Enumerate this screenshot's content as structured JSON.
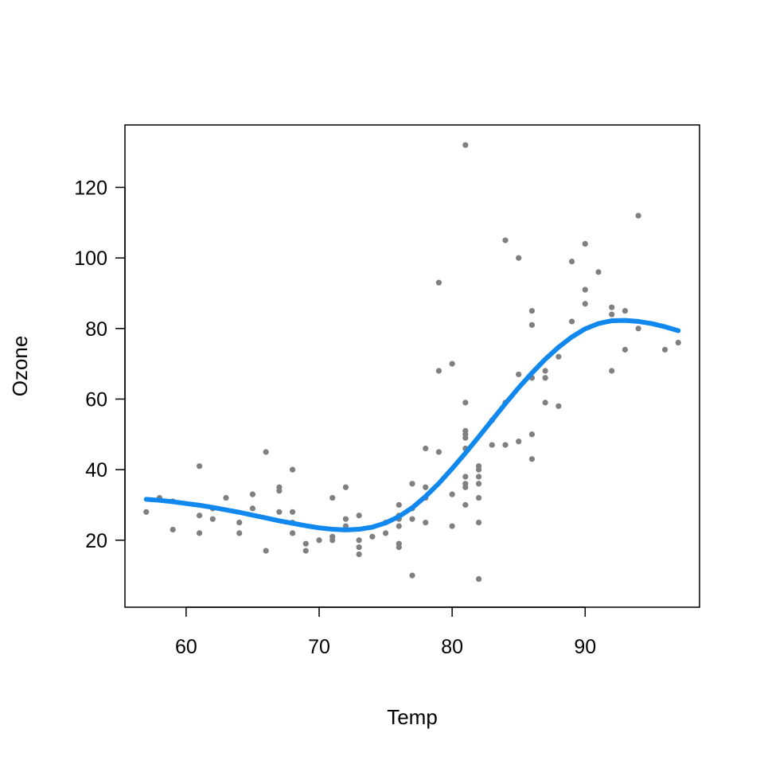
{
  "chart_data": {
    "type": "scatter",
    "xlabel": "Temp",
    "ylabel": "Ozone",
    "xlim": [
      55.4,
      98.6
    ],
    "ylim": [
      1.0,
      137.7
    ],
    "xticks": [
      60,
      70,
      80,
      90
    ],
    "yticks": [
      20,
      40,
      60,
      80,
      100,
      120
    ],
    "grid": false,
    "point_color": "#808080",
    "curve_color": "#1188ee",
    "points": [
      [
        57,
        28
      ],
      [
        58,
        32
      ],
      [
        59,
        31
      ],
      [
        59,
        23
      ],
      [
        61,
        41
      ],
      [
        61,
        27
      ],
      [
        61,
        22
      ],
      [
        62,
        29
      ],
      [
        62,
        26
      ],
      [
        63,
        32
      ],
      [
        64,
        25
      ],
      [
        64,
        22
      ],
      [
        65,
        33
      ],
      [
        65,
        29
      ],
      [
        66,
        45
      ],
      [
        66,
        17
      ],
      [
        67,
        35
      ],
      [
        67,
        34
      ],
      [
        67,
        28
      ],
      [
        68,
        40
      ],
      [
        68,
        28
      ],
      [
        68,
        25
      ],
      [
        68,
        22
      ],
      [
        69,
        19
      ],
      [
        69,
        17
      ],
      [
        70,
        20
      ],
      [
        71,
        32
      ],
      [
        71,
        21
      ],
      [
        71,
        20
      ],
      [
        72,
        35
      ],
      [
        72,
        26
      ],
      [
        72,
        24
      ],
      [
        73,
        27
      ],
      [
        73,
        20
      ],
      [
        73,
        18
      ],
      [
        73,
        16
      ],
      [
        74,
        21
      ],
      [
        75,
        25
      ],
      [
        75,
        22
      ],
      [
        76,
        30
      ],
      [
        76,
        27
      ],
      [
        76,
        26
      ],
      [
        76,
        24
      ],
      [
        76,
        19
      ],
      [
        76,
        18
      ],
      [
        77,
        36
      ],
      [
        77,
        29
      ],
      [
        77,
        26
      ],
      [
        77,
        10
      ],
      [
        78,
        46
      ],
      [
        78,
        35
      ],
      [
        78,
        32
      ],
      [
        78,
        25
      ],
      [
        79,
        93
      ],
      [
        79,
        68
      ],
      [
        79,
        45
      ],
      [
        80,
        70
      ],
      [
        80,
        33
      ],
      [
        80,
        24
      ],
      [
        81,
        132
      ],
      [
        81,
        59
      ],
      [
        81,
        51
      ],
      [
        81,
        50
      ],
      [
        81,
        49
      ],
      [
        81,
        46
      ],
      [
        81,
        38
      ],
      [
        81,
        36
      ],
      [
        81,
        35
      ],
      [
        81,
        30
      ],
      [
        82,
        41
      ],
      [
        82,
        40
      ],
      [
        82,
        38
      ],
      [
        82,
        36
      ],
      [
        82,
        32
      ],
      [
        82,
        25
      ],
      [
        82,
        9
      ],
      [
        83,
        54
      ],
      [
        83,
        47
      ],
      [
        84,
        105
      ],
      [
        84,
        59
      ],
      [
        84,
        47
      ],
      [
        85,
        100
      ],
      [
        85,
        67
      ],
      [
        85,
        48
      ],
      [
        86,
        85
      ],
      [
        86,
        81
      ],
      [
        86,
        66
      ],
      [
        86,
        50
      ],
      [
        86,
        43
      ],
      [
        87,
        68
      ],
      [
        87,
        66
      ],
      [
        87,
        59
      ],
      [
        88,
        72
      ],
      [
        88,
        58
      ],
      [
        89,
        99
      ],
      [
        89,
        82
      ],
      [
        90,
        104
      ],
      [
        90,
        91
      ],
      [
        90,
        87
      ],
      [
        91,
        96
      ],
      [
        92,
        86
      ],
      [
        92,
        84
      ],
      [
        92,
        68
      ],
      [
        93,
        85
      ],
      [
        93,
        74
      ],
      [
        94,
        112
      ],
      [
        94,
        80
      ],
      [
        96,
        74
      ],
      [
        97,
        76
      ]
    ],
    "smooth_curve": [
      [
        57,
        31.6
      ],
      [
        58,
        31.3
      ],
      [
        59,
        30.9
      ],
      [
        60,
        30.4
      ],
      [
        61,
        29.9
      ],
      [
        62,
        29.3
      ],
      [
        63,
        28.6
      ],
      [
        64,
        27.9
      ],
      [
        65,
        27.1
      ],
      [
        66,
        26.3
      ],
      [
        67,
        25.5
      ],
      [
        68,
        24.8
      ],
      [
        69,
        24.1
      ],
      [
        70,
        23.5
      ],
      [
        71,
        23.1
      ],
      [
        72,
        22.9
      ],
      [
        73,
        23.1
      ],
      [
        74,
        23.7
      ],
      [
        75,
        24.9
      ],
      [
        76,
        26.7
      ],
      [
        77,
        29.2
      ],
      [
        78,
        32.4
      ],
      [
        79,
        36.1
      ],
      [
        80,
        40.3
      ],
      [
        81,
        44.7
      ],
      [
        82,
        49.3
      ],
      [
        83,
        54.0
      ],
      [
        84,
        58.7
      ],
      [
        85,
        63.2
      ],
      [
        86,
        67.4
      ],
      [
        87,
        71.3
      ],
      [
        88,
        74.7
      ],
      [
        89,
        77.6
      ],
      [
        90,
        79.9
      ],
      [
        91,
        81.4
      ],
      [
        92,
        82.2
      ],
      [
        93,
        82.3
      ],
      [
        94,
        82.0
      ],
      [
        95,
        81.4
      ],
      [
        96,
        80.5
      ],
      [
        97,
        79.4
      ]
    ]
  }
}
